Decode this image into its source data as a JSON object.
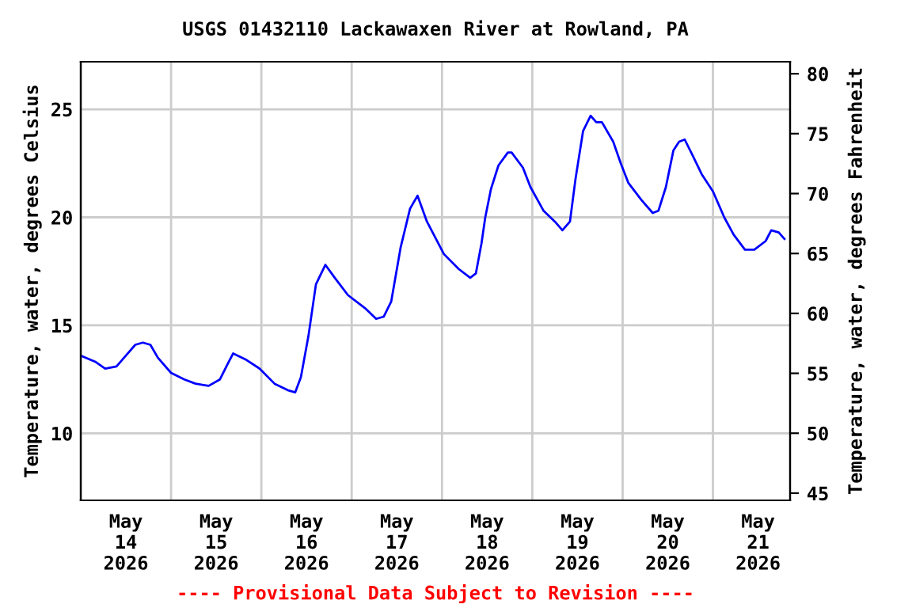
{
  "chart_data": {
    "type": "line",
    "title": "USGS 01432110 Lackawaxen River at Rowland, PA",
    "ylabel": "Temperature, water, degrees Celsius",
    "y2label": "Temperature, water, degrees Fahrenheit",
    "annotations": [
      "---- Provisional Data Subject to Revision ----"
    ],
    "x": [
      "2026-05-14T00:00",
      "2026-05-14T04:00",
      "2026-05-14T06:30",
      "2026-05-14T09:30",
      "2026-05-14T12:00",
      "2026-05-14T14:30",
      "2026-05-14T16:30",
      "2026-05-14T18:30",
      "2026-05-14T20:30",
      "2026-05-15T00:00",
      "2026-05-15T03:30",
      "2026-05-15T06:30",
      "2026-05-15T10:00",
      "2026-05-15T13:00",
      "2026-05-15T15:00",
      "2026-05-15T16:30",
      "2026-05-15T20:00",
      "2026-05-15T23:30",
      "2026-05-16T03:30",
      "2026-05-16T07:00",
      "2026-05-16T09:00",
      "2026-05-16T10:30",
      "2026-05-16T12:30",
      "2026-05-16T14:30",
      "2026-05-16T17:00",
      "2026-05-16T19:30",
      "2026-05-16T23:00",
      "2026-05-17T03:30",
      "2026-05-17T06:30",
      "2026-05-17T08:30",
      "2026-05-17T10:30",
      "2026-05-17T13:00",
      "2026-05-17T15:30",
      "2026-05-17T17:30",
      "2026-05-17T20:00",
      "2026-05-18T00:30",
      "2026-05-18T04:30",
      "2026-05-18T07:30",
      "2026-05-18T09:00",
      "2026-05-18T10:30",
      "2026-05-18T11:30",
      "2026-05-18T13:00",
      "2026-05-18T15:00",
      "2026-05-18T17:30",
      "2026-05-18T18:30",
      "2026-05-18T21:30",
      "2026-05-18T23:30",
      "2026-05-19T03:00",
      "2026-05-19T06:00",
      "2026-05-19T08:00",
      "2026-05-19T10:00",
      "2026-05-19T11:30",
      "2026-05-19T13:30",
      "2026-05-19T15:30",
      "2026-05-19T17:00",
      "2026-05-19T18:30",
      "2026-05-19T21:30",
      "2026-05-19T23:30",
      "2026-05-20T01:30",
      "2026-05-20T05:00",
      "2026-05-20T08:00",
      "2026-05-20T09:30",
      "2026-05-20T11:30",
      "2026-05-20T13:30",
      "2026-05-20T15:00",
      "2026-05-20T16:30",
      "2026-05-20T18:30",
      "2026-05-20T21:00",
      "2026-05-21T00:00",
      "2026-05-21T03:00",
      "2026-05-21T05:30",
      "2026-05-21T08:30",
      "2026-05-21T11:00",
      "2026-05-21T14:00",
      "2026-05-21T15:30",
      "2026-05-21T17:30",
      "2026-05-21T19:00"
    ],
    "series": [
      {
        "color": "#0000ff",
        "values": [
          13.6,
          13.3,
          13.0,
          13.1,
          13.6,
          14.1,
          14.2,
          14.1,
          13.5,
          12.8,
          12.5,
          12.3,
          12.2,
          12.5,
          13.2,
          13.7,
          13.4,
          13.0,
          12.3,
          12.0,
          11.9,
          12.6,
          14.5,
          16.9,
          17.8,
          17.2,
          16.4,
          15.8,
          15.3,
          15.4,
          16.1,
          18.6,
          20.4,
          21.0,
          19.8,
          18.3,
          17.6,
          17.2,
          17.4,
          18.8,
          20.0,
          21.3,
          22.4,
          23.0,
          23.0,
          22.3,
          21.4,
          20.3,
          19.8,
          19.4,
          19.8,
          21.8,
          24.0,
          24.7,
          24.4,
          24.4,
          23.5,
          22.5,
          21.6,
          20.8,
          20.2,
          20.3,
          21.4,
          23.1,
          23.5,
          23.6,
          22.9,
          22.0,
          21.2,
          20.0,
          19.2,
          18.5,
          18.5,
          18.9,
          19.4,
          19.3,
          19.0
        ]
      }
    ],
    "xlim": [
      "2026-05-14T00:00",
      "2026-05-21T20:30"
    ],
    "xticks": [
      {
        "value": "2026-05-14T00:00",
        "label": null
      },
      {
        "value": "2026-05-14T12:00",
        "label": "May\n14\n2026"
      },
      {
        "value": "2026-05-15T00:00",
        "label": null
      },
      {
        "value": "2026-05-15T12:00",
        "label": "May\n15\n2026"
      },
      {
        "value": "2026-05-16T00:00",
        "label": null
      },
      {
        "value": "2026-05-16T12:00",
        "label": "May\n16\n2026"
      },
      {
        "value": "2026-05-17T00:00",
        "label": null
      },
      {
        "value": "2026-05-17T12:00",
        "label": "May\n17\n2026"
      },
      {
        "value": "2026-05-18T00:00",
        "label": null
      },
      {
        "value": "2026-05-18T12:00",
        "label": "May\n18\n2026"
      },
      {
        "value": "2026-05-19T00:00",
        "label": null
      },
      {
        "value": "2026-05-19T12:00",
        "label": "May\n19\n2026"
      },
      {
        "value": "2026-05-20T00:00",
        "label": null
      },
      {
        "value": "2026-05-20T12:00",
        "label": "May\n20\n2026"
      },
      {
        "value": "2026-05-21T00:00",
        "label": null
      },
      {
        "value": "2026-05-21T12:00",
        "label": "May\n21\n2026"
      }
    ],
    "ylim": [
      6.9,
      27.2
    ],
    "yticks": [
      10,
      15,
      20,
      25
    ],
    "y2lim": [
      44.4,
      81.0
    ],
    "y2ticks": [
      45,
      50,
      55,
      60,
      65,
      70,
      75,
      80
    ],
    "grid": true,
    "legend": false,
    "marker": "none",
    "line_style": "solid"
  }
}
